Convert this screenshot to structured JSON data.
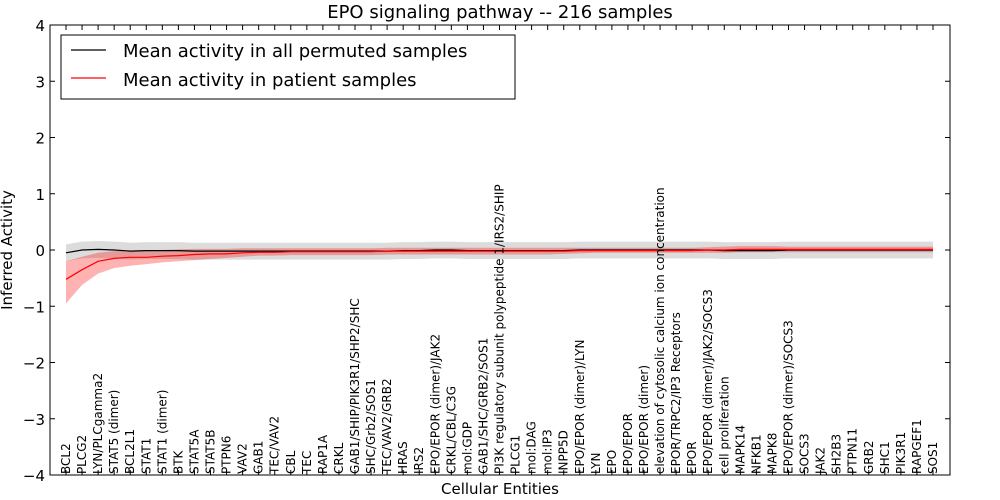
{
  "chart_data": {
    "type": "line",
    "title": "EPO signaling pathway -- 216 samples",
    "xlabel": "Cellular Entities",
    "ylabel": "Inferred Activity",
    "ylim": [
      -4,
      4
    ],
    "yticks": [
      4,
      3,
      2,
      1,
      0,
      -1,
      -2,
      -3,
      -4
    ],
    "ytick_labels": [
      "4",
      "3",
      "2",
      "1",
      "0",
      "−1",
      "−2",
      "−3",
      "−4"
    ],
    "categories": [
      "BCL2",
      "PLCG2",
      "LYN/PLCgamma2",
      "STAT5 (dimer)",
      "BCL2L1",
      "STAT1",
      "STAT1 (dimer)",
      "BTK",
      "STAT5A",
      "STAT5B",
      "PTPN6",
      "VAV2",
      "GAB1",
      "TEC/VAV2",
      "CBL",
      "TEC",
      "RAP1A",
      "CRKL",
      "GAB1/SHIP/PIK3R1/SHP2/SHC",
      "SHC/Grb2/SOS1",
      "TEC/VAV2/GRB2",
      "HRAS",
      "IRS2",
      "EPO/EPOR (dimer)/JAK2",
      "CRKL/CBL/C3G",
      "mol:GDP",
      "GAB1/SHC/GRB2/SOS1",
      "PI3K regulatory subunit polypeptide 1/IRS2/SHIP",
      "PLCG1",
      "mol:DAG",
      "mol:IP3",
      "INPP5D",
      "EPO/EPOR (dimer)/LYN",
      "LYN",
      "EPO",
      "EPO/EPOR",
      "EPO/EPOR (dimer)",
      "elevation of cytosolic calcium ion concentration",
      "EPOR/TRPC2/IP3 Receptors",
      "EPOR",
      "EPO/EPOR (dimer)/JAK2/SOCS3",
      "cell proliferation",
      "MAPK14",
      "NFKB1",
      "MAPK8",
      "EPO/EPOR (dimer)/SOCS3",
      "SOCS3",
      "JAK2",
      "SH2B3",
      "PTPN11",
      "GRB2",
      "SHC1",
      "PIK3R1",
      "RAPGEF1",
      "SOS1"
    ],
    "series": [
      {
        "name": "Mean activity in all permuted samples",
        "color": "#000000",
        "values": [
          -0.05,
          0.0,
          0.01,
          0.0,
          -0.02,
          -0.01,
          -0.01,
          -0.01,
          -0.02,
          -0.02,
          -0.02,
          -0.02,
          -0.02,
          -0.02,
          -0.02,
          -0.02,
          -0.02,
          -0.02,
          -0.02,
          -0.02,
          -0.02,
          -0.01,
          -0.01,
          0.0,
          0.0,
          -0.01,
          -0.01,
          -0.01,
          -0.01,
          -0.01,
          -0.01,
          -0.01,
          0.0,
          0.0,
          0.0,
          0.0,
          0.0,
          0.0,
          0.0,
          0.0,
          0.0,
          -0.01,
          -0.01,
          -0.01,
          -0.01,
          0.0,
          0.0,
          0.0,
          0.0,
          0.0,
          0.0,
          0.0,
          0.0,
          0.0,
          0.0
        ],
        "band": 0.15
      },
      {
        "name": "Mean activity in patient samples",
        "color": "#ff0000",
        "values": [
          -0.52,
          -0.35,
          -0.2,
          -0.15,
          -0.13,
          -0.13,
          -0.11,
          -0.1,
          -0.08,
          -0.07,
          -0.07,
          -0.05,
          -0.04,
          -0.04,
          -0.03,
          -0.03,
          -0.03,
          -0.03,
          -0.03,
          -0.03,
          -0.02,
          -0.02,
          -0.02,
          -0.02,
          -0.02,
          -0.02,
          -0.02,
          -0.02,
          -0.02,
          -0.02,
          -0.02,
          -0.02,
          -0.01,
          -0.01,
          -0.01,
          -0.01,
          -0.01,
          -0.01,
          -0.01,
          -0.01,
          0.0,
          0.0,
          0.01,
          0.01,
          0.01,
          0.01,
          0.01,
          0.01,
          0.01,
          0.01,
          0.01,
          0.01,
          0.01,
          0.01,
          0.01
        ],
        "band_lower": [
          -0.95,
          -0.62,
          -0.42,
          -0.32,
          -0.28,
          -0.25,
          -0.22,
          -0.2,
          -0.18,
          -0.16,
          -0.14,
          -0.12,
          -0.1,
          -0.1,
          -0.09,
          -0.09,
          -0.09,
          -0.09,
          -0.09,
          -0.09,
          -0.08,
          -0.08,
          -0.08,
          -0.08,
          -0.08,
          -0.08,
          -0.08,
          -0.08,
          -0.08,
          -0.08,
          -0.08,
          -0.07,
          -0.06,
          -0.05,
          -0.05,
          -0.05,
          -0.05,
          -0.05,
          -0.05,
          -0.05,
          -0.05,
          -0.05,
          -0.04,
          -0.04,
          -0.04,
          -0.04,
          -0.04,
          -0.04,
          -0.04,
          -0.04,
          -0.04,
          -0.04,
          -0.04,
          -0.04,
          -0.04
        ],
        "band_upper": [
          -0.2,
          -0.12,
          -0.05,
          -0.02,
          -0.01,
          0.0,
          0.0,
          0.01,
          0.02,
          0.02,
          0.02,
          0.03,
          0.03,
          0.03,
          0.03,
          0.03,
          0.03,
          0.03,
          0.03,
          0.03,
          0.04,
          0.04,
          0.04,
          0.04,
          0.04,
          0.04,
          0.04,
          0.04,
          0.04,
          0.04,
          0.04,
          0.04,
          0.04,
          0.04,
          0.04,
          0.04,
          0.04,
          0.04,
          0.04,
          0.04,
          0.05,
          0.06,
          0.07,
          0.07,
          0.07,
          0.06,
          0.06,
          0.06,
          0.06,
          0.06,
          0.06,
          0.06,
          0.06,
          0.06,
          0.06
        ]
      }
    ],
    "legend": {
      "location": "top-left",
      "entries": [
        "Mean activity in all permuted samples",
        "Mean activity in patient samples"
      ]
    },
    "grid": false
  }
}
